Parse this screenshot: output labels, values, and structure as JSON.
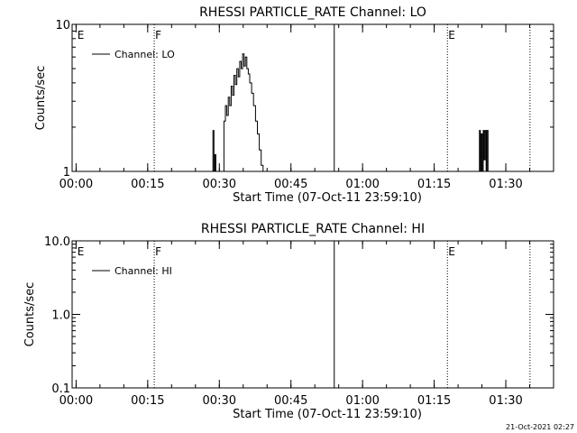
{
  "chart_data": [
    {
      "type": "line",
      "title": "RHESSI PARTICLE_RATE Channel: LO",
      "xlabel": "Start Time (07-Oct-11 23:59:10)",
      "ylabel": "Counts/sec",
      "y_scale": "log",
      "ylim": [
        1,
        10
      ],
      "y_ticks": [
        {
          "value": 1,
          "label": "1"
        },
        {
          "value": 10,
          "label": "10"
        }
      ],
      "xlim_minutes": [
        0,
        100.83
      ],
      "x_ticks": [
        {
          "minutes": 0.83,
          "label": "00:00"
        },
        {
          "minutes": 15.83,
          "label": "00:15"
        },
        {
          "minutes": 30.83,
          "label": "00:30"
        },
        {
          "minutes": 45.83,
          "label": "00:45"
        },
        {
          "minutes": 60.83,
          "label": "01:00"
        },
        {
          "minutes": 75.83,
          "label": "01:15"
        },
        {
          "minutes": 90.83,
          "label": "01:30"
        }
      ],
      "legend": {
        "placement": "top-left",
        "entries": [
          "Channel: LO"
        ]
      },
      "series": [
        {
          "name": "Channel: LO",
          "x_minutes": [
            0,
            29.3,
            29.5,
            29.7,
            29.9,
            30.1,
            30.3,
            31.5,
            31.8,
            32.1,
            32.4,
            32.7,
            33.0,
            33.3,
            33.6,
            33.9,
            34.2,
            34.5,
            34.8,
            35.1,
            35.4,
            35.7,
            36.0,
            36.3,
            36.6,
            36.9,
            37.2,
            37.6,
            38.0,
            38.4,
            38.8,
            39.2,
            39.6,
            40.0,
            85.0,
            85.3,
            85.5,
            85.7,
            85.9,
            86.1,
            86.3,
            86.5,
            86.7,
            86.9,
            87.1,
            87.4,
            100.83
          ],
          "y": [
            1,
            1,
            1.9,
            1,
            1.3,
            1,
            1,
            1,
            2.2,
            2.8,
            2.4,
            3.2,
            2.8,
            3.8,
            3.3,
            4.5,
            3.9,
            5.0,
            4.4,
            5.6,
            5.0,
            6.3,
            5.2,
            6.0,
            5.0,
            4.6,
            4.0,
            3.4,
            2.8,
            2.2,
            1.8,
            1.4,
            1.1,
            1,
            1,
            1.9,
            1,
            1.8,
            1,
            1.9,
            1.2,
            1.9,
            1,
            1.9,
            1,
            1,
            1
          ]
        }
      ],
      "annotations": [
        {
          "label": "E",
          "minutes": 0.9,
          "line": "none"
        },
        {
          "label": "F",
          "minutes": 17.2,
          "line": "dotted"
        },
        {
          "label": "",
          "minutes": 54.9,
          "line": "solid"
        },
        {
          "label": "E",
          "minutes": 78.6,
          "line": "dotted"
        },
        {
          "label": "",
          "minutes": 95.9,
          "line": "dotted"
        }
      ]
    },
    {
      "type": "line",
      "title": "RHESSI PARTICLE_RATE Channel: HI",
      "xlabel": "Start Time (07-Oct-11 23:59:10)",
      "ylabel": "Counts/sec",
      "y_scale": "log",
      "ylim": [
        0.1,
        10
      ],
      "y_ticks": [
        {
          "value": 0.1,
          "label": "0.1"
        },
        {
          "value": 1,
          "label": "1.0"
        },
        {
          "value": 10,
          "label": "10.0"
        }
      ],
      "xlim_minutes": [
        0,
        100.83
      ],
      "x_ticks": [
        {
          "minutes": 0.83,
          "label": "00:00"
        },
        {
          "minutes": 15.83,
          "label": "00:15"
        },
        {
          "minutes": 30.83,
          "label": "00:30"
        },
        {
          "minutes": 45.83,
          "label": "00:45"
        },
        {
          "minutes": 60.83,
          "label": "01:00"
        },
        {
          "minutes": 75.83,
          "label": "01:15"
        },
        {
          "minutes": 90.83,
          "label": "01:30"
        }
      ],
      "legend": {
        "placement": "top-left",
        "entries": [
          "Channel: HI"
        ]
      },
      "series": [
        {
          "name": "Channel: HI",
          "x_minutes": [],
          "y": []
        }
      ],
      "annotations": [
        {
          "label": "E",
          "minutes": 0.9,
          "line": "none"
        },
        {
          "label": "F",
          "minutes": 17.2,
          "line": "dotted"
        },
        {
          "label": "",
          "minutes": 54.9,
          "line": "solid"
        },
        {
          "label": "E",
          "minutes": 78.6,
          "line": "dotted"
        },
        {
          "label": "",
          "minutes": 95.9,
          "line": "dotted"
        }
      ]
    }
  ],
  "footer": {
    "timestamp": "21-Oct-2021 02:27"
  },
  "colors": {
    "background": "#ffffff",
    "ink": "#000000"
  }
}
